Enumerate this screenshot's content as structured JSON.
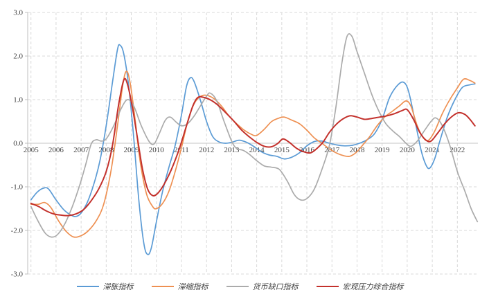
{
  "chart_data": {
    "type": "line",
    "title": "",
    "xlabel": "",
    "ylabel": "",
    "xlim": [
      2004.87,
      2022.82
    ],
    "ylim": [
      -3.0,
      3.0
    ],
    "grid": "dashed",
    "legend_position": "bottom",
    "colors": {
      "grid": "#d9d9d9",
      "axis": "#bfbfbf",
      "zero_line": "#c6c6c6",
      "tick_label": "#404040"
    },
    "y_ticks": [
      3.0,
      2.0,
      1.0,
      0.0,
      -1.0,
      -2.0,
      -3.0
    ],
    "y_tick_labels": [
      "3.0",
      "2.0",
      "1.0",
      "0.0",
      "-1.0",
      "-2.0",
      "-3.0"
    ],
    "x_ticks": [
      2005,
      2006,
      2007,
      2008,
      2009,
      2010,
      2011,
      2012,
      2013,
      2014,
      2015,
      2016,
      2017,
      2018,
      2019,
      2020,
      2021,
      2022
    ],
    "x_tick_labels": [
      "2005",
      "2006",
      "2007",
      "2008",
      "2009",
      "2010",
      "2011",
      "2012",
      "2013",
      "2014",
      "2015",
      "2016",
      "2017",
      "2018",
      "2019",
      "2020",
      "2021",
      "2022"
    ],
    "series": [
      {
        "name": "滞胀指标",
        "color": "#5b9bd5",
        "width": 1.7,
        "points": [
          [
            2005.0,
            -1.3
          ],
          [
            2005.25,
            -1.12
          ],
          [
            2005.5,
            -1.03
          ],
          [
            2005.7,
            -1.05
          ],
          [
            2006.0,
            -1.3
          ],
          [
            2006.3,
            -1.52
          ],
          [
            2006.6,
            -1.65
          ],
          [
            2006.8,
            -1.68
          ],
          [
            2007.0,
            -1.6
          ],
          [
            2007.25,
            -1.35
          ],
          [
            2007.5,
            -0.95
          ],
          [
            2007.75,
            -0.4
          ],
          [
            2008.0,
            0.4
          ],
          [
            2008.25,
            1.4
          ],
          [
            2008.45,
            2.15
          ],
          [
            2008.55,
            2.25
          ],
          [
            2008.7,
            2.05
          ],
          [
            2008.9,
            1.3
          ],
          [
            2009.1,
            0.1
          ],
          [
            2009.3,
            -1.3
          ],
          [
            2009.5,
            -2.3
          ],
          [
            2009.65,
            -2.55
          ],
          [
            2009.8,
            -2.4
          ],
          [
            2010.0,
            -1.8
          ],
          [
            2010.25,
            -1.1
          ],
          [
            2010.5,
            -0.55
          ],
          [
            2010.75,
            -0.05
          ],
          [
            2011.0,
            0.65
          ],
          [
            2011.2,
            1.3
          ],
          [
            2011.35,
            1.5
          ],
          [
            2011.5,
            1.42
          ],
          [
            2011.75,
            1.0
          ],
          [
            2012.0,
            0.5
          ],
          [
            2012.25,
            0.15
          ],
          [
            2012.5,
            0.03
          ],
          [
            2012.75,
            0.0
          ],
          [
            2013.0,
            0.02
          ],
          [
            2013.3,
            0.07
          ],
          [
            2013.6,
            0.02
          ],
          [
            2013.9,
            -0.08
          ],
          [
            2014.2,
            -0.2
          ],
          [
            2014.5,
            -0.27
          ],
          [
            2014.8,
            -0.3
          ],
          [
            2015.1,
            -0.36
          ],
          [
            2015.4,
            -0.32
          ],
          [
            2015.7,
            -0.22
          ],
          [
            2016.0,
            -0.06
          ],
          [
            2016.3,
            0.04
          ],
          [
            2016.6,
            0.05
          ],
          [
            2016.9,
            0.0
          ],
          [
            2017.2,
            -0.04
          ],
          [
            2017.5,
            -0.06
          ],
          [
            2017.8,
            -0.05
          ],
          [
            2018.1,
            0.0
          ],
          [
            2018.4,
            0.08
          ],
          [
            2018.7,
            0.22
          ],
          [
            2019.0,
            0.55
          ],
          [
            2019.3,
            1.05
          ],
          [
            2019.6,
            1.32
          ],
          [
            2019.85,
            1.4
          ],
          [
            2020.05,
            1.2
          ],
          [
            2020.3,
            0.55
          ],
          [
            2020.55,
            -0.15
          ],
          [
            2020.75,
            -0.5
          ],
          [
            2020.9,
            -0.57
          ],
          [
            2021.1,
            -0.35
          ],
          [
            2021.3,
            0.05
          ],
          [
            2021.6,
            0.6
          ],
          [
            2021.9,
            1.0
          ],
          [
            2022.2,
            1.28
          ],
          [
            2022.5,
            1.34
          ],
          [
            2022.7,
            1.36
          ]
        ]
      },
      {
        "name": "滞缩指标",
        "color": "#ee9052",
        "width": 1.7,
        "points": [
          [
            2005.0,
            -1.4
          ],
          [
            2005.3,
            -1.4
          ],
          [
            2005.55,
            -1.36
          ],
          [
            2005.8,
            -1.48
          ],
          [
            2006.1,
            -1.78
          ],
          [
            2006.4,
            -2.02
          ],
          [
            2006.7,
            -2.15
          ],
          [
            2007.0,
            -2.12
          ],
          [
            2007.3,
            -2.0
          ],
          [
            2007.6,
            -1.78
          ],
          [
            2007.9,
            -1.4
          ],
          [
            2008.2,
            -0.6
          ],
          [
            2008.45,
            0.4
          ],
          [
            2008.65,
            1.3
          ],
          [
            2008.8,
            1.65
          ],
          [
            2008.95,
            1.4
          ],
          [
            2009.15,
            0.55
          ],
          [
            2009.35,
            -0.4
          ],
          [
            2009.6,
            -1.15
          ],
          [
            2009.85,
            -1.45
          ],
          [
            2010.0,
            -1.5
          ],
          [
            2010.25,
            -1.38
          ],
          [
            2010.5,
            -1.1
          ],
          [
            2010.75,
            -0.65
          ],
          [
            2011.0,
            -0.1
          ],
          [
            2011.25,
            0.5
          ],
          [
            2011.5,
            0.9
          ],
          [
            2011.75,
            1.07
          ],
          [
            2012.0,
            1.1
          ],
          [
            2012.3,
            1.02
          ],
          [
            2012.6,
            0.85
          ],
          [
            2012.9,
            0.62
          ],
          [
            2013.2,
            0.45
          ],
          [
            2013.5,
            0.3
          ],
          [
            2013.8,
            0.2
          ],
          [
            2014.0,
            0.18
          ],
          [
            2014.3,
            0.32
          ],
          [
            2014.6,
            0.5
          ],
          [
            2014.9,
            0.58
          ],
          [
            2015.1,
            0.6
          ],
          [
            2015.4,
            0.53
          ],
          [
            2015.7,
            0.45
          ],
          [
            2016.0,
            0.3
          ],
          [
            2016.3,
            0.12
          ],
          [
            2016.6,
            0.0
          ],
          [
            2016.9,
            -0.13
          ],
          [
            2017.2,
            -0.23
          ],
          [
            2017.5,
            -0.29
          ],
          [
            2017.7,
            -0.3
          ],
          [
            2017.95,
            -0.22
          ],
          [
            2018.2,
            -0.06
          ],
          [
            2018.5,
            0.15
          ],
          [
            2018.8,
            0.4
          ],
          [
            2019.1,
            0.6
          ],
          [
            2019.4,
            0.73
          ],
          [
            2019.7,
            0.86
          ],
          [
            2019.95,
            0.97
          ],
          [
            2020.15,
            0.85
          ],
          [
            2020.4,
            0.4
          ],
          [
            2020.65,
            0.12
          ],
          [
            2020.85,
            0.07
          ],
          [
            2021.1,
            0.28
          ],
          [
            2021.4,
            0.68
          ],
          [
            2021.7,
            1.0
          ],
          [
            2022.0,
            1.27
          ],
          [
            2022.25,
            1.47
          ],
          [
            2022.5,
            1.44
          ],
          [
            2022.7,
            1.38
          ]
        ]
      },
      {
        "name": "货币缺口指标",
        "color": "#ababab",
        "width": 1.7,
        "points": [
          [
            2005.0,
            -1.45
          ],
          [
            2005.25,
            -1.75
          ],
          [
            2005.55,
            -2.05
          ],
          [
            2005.8,
            -2.15
          ],
          [
            2006.05,
            -2.1
          ],
          [
            2006.35,
            -1.85
          ],
          [
            2006.65,
            -1.45
          ],
          [
            2006.95,
            -0.95
          ],
          [
            2007.2,
            -0.45
          ],
          [
            2007.4,
            -0.02
          ],
          [
            2007.6,
            0.08
          ],
          [
            2007.8,
            0.05
          ],
          [
            2008.0,
            0.1
          ],
          [
            2008.3,
            0.4
          ],
          [
            2008.6,
            0.8
          ],
          [
            2008.85,
            1.0
          ],
          [
            2009.1,
            0.85
          ],
          [
            2009.4,
            0.4
          ],
          [
            2009.7,
            0.05
          ],
          [
            2009.9,
            -0.02
          ],
          [
            2010.1,
            0.2
          ],
          [
            2010.35,
            0.52
          ],
          [
            2010.55,
            0.6
          ],
          [
            2010.8,
            0.48
          ],
          [
            2011.0,
            0.4
          ],
          [
            2011.25,
            0.45
          ],
          [
            2011.5,
            0.62
          ],
          [
            2011.75,
            0.85
          ],
          [
            2012.0,
            1.08
          ],
          [
            2012.15,
            1.15
          ],
          [
            2012.4,
            0.98
          ],
          [
            2012.7,
            0.5
          ],
          [
            2013.0,
            0.05
          ],
          [
            2013.2,
            -0.12
          ],
          [
            2013.45,
            -0.16
          ],
          [
            2013.7,
            -0.25
          ],
          [
            2014.0,
            -0.4
          ],
          [
            2014.3,
            -0.52
          ],
          [
            2014.6,
            -0.55
          ],
          [
            2014.9,
            -0.6
          ],
          [
            2015.2,
            -0.85
          ],
          [
            2015.5,
            -1.18
          ],
          [
            2015.75,
            -1.3
          ],
          [
            2016.0,
            -1.27
          ],
          [
            2016.3,
            -1.05
          ],
          [
            2016.6,
            -0.6
          ],
          [
            2016.9,
            -0.05
          ],
          [
            2017.15,
            0.8
          ],
          [
            2017.4,
            1.85
          ],
          [
            2017.6,
            2.45
          ],
          [
            2017.8,
            2.45
          ],
          [
            2018.0,
            2.1
          ],
          [
            2018.3,
            1.6
          ],
          [
            2018.6,
            1.1
          ],
          [
            2018.9,
            0.7
          ],
          [
            2019.15,
            0.45
          ],
          [
            2019.45,
            0.27
          ],
          [
            2019.7,
            0.15
          ],
          [
            2019.95,
            0.0
          ],
          [
            2020.15,
            -0.07
          ],
          [
            2020.4,
            0.05
          ],
          [
            2020.7,
            0.3
          ],
          [
            2020.95,
            0.5
          ],
          [
            2021.15,
            0.58
          ],
          [
            2021.4,
            0.4
          ],
          [
            2021.7,
            -0.05
          ],
          [
            2022.0,
            -0.65
          ],
          [
            2022.3,
            -1.1
          ],
          [
            2022.55,
            -1.5
          ],
          [
            2022.8,
            -1.8
          ]
        ]
      },
      {
        "name": "宏观压力综合指标",
        "color": "#c3312c",
        "width": 2.0,
        "points": [
          [
            2005.0,
            -1.38
          ],
          [
            2005.3,
            -1.45
          ],
          [
            2005.6,
            -1.55
          ],
          [
            2005.9,
            -1.62
          ],
          [
            2006.2,
            -1.65
          ],
          [
            2006.5,
            -1.66
          ],
          [
            2006.8,
            -1.62
          ],
          [
            2007.1,
            -1.52
          ],
          [
            2007.4,
            -1.32
          ],
          [
            2007.7,
            -1.05
          ],
          [
            2008.0,
            -0.65
          ],
          [
            2008.25,
            -0.05
          ],
          [
            2008.5,
            0.9
          ],
          [
            2008.7,
            1.45
          ],
          [
            2008.85,
            1.35
          ],
          [
            2009.05,
            0.8
          ],
          [
            2009.25,
            0.1
          ],
          [
            2009.45,
            -0.6
          ],
          [
            2009.65,
            -1.05
          ],
          [
            2009.85,
            -1.2
          ],
          [
            2010.05,
            -1.15
          ],
          [
            2010.3,
            -0.95
          ],
          [
            2010.6,
            -0.6
          ],
          [
            2010.9,
            -0.15
          ],
          [
            2011.2,
            0.4
          ],
          [
            2011.45,
            0.85
          ],
          [
            2011.65,
            1.05
          ],
          [
            2011.9,
            1.05
          ],
          [
            2012.2,
            0.98
          ],
          [
            2012.5,
            0.85
          ],
          [
            2012.8,
            0.68
          ],
          [
            2013.1,
            0.5
          ],
          [
            2013.4,
            0.3
          ],
          [
            2013.7,
            0.15
          ],
          [
            2014.0,
            0.02
          ],
          [
            2014.3,
            -0.07
          ],
          [
            2014.6,
            -0.08
          ],
          [
            2014.85,
            0.0
          ],
          [
            2015.05,
            0.1
          ],
          [
            2015.3,
            0.02
          ],
          [
            2015.6,
            -0.12
          ],
          [
            2015.9,
            -0.2
          ],
          [
            2016.15,
            -0.22
          ],
          [
            2016.4,
            -0.12
          ],
          [
            2016.65,
            0.03
          ],
          [
            2016.9,
            0.25
          ],
          [
            2017.2,
            0.45
          ],
          [
            2017.5,
            0.58
          ],
          [
            2017.75,
            0.63
          ],
          [
            2018.0,
            0.6
          ],
          [
            2018.3,
            0.55
          ],
          [
            2018.6,
            0.57
          ],
          [
            2018.9,
            0.6
          ],
          [
            2019.2,
            0.63
          ],
          [
            2019.5,
            0.68
          ],
          [
            2019.8,
            0.75
          ],
          [
            2020.0,
            0.77
          ],
          [
            2020.25,
            0.55
          ],
          [
            2020.5,
            0.25
          ],
          [
            2020.75,
            0.07
          ],
          [
            2020.95,
            0.05
          ],
          [
            2021.2,
            0.22
          ],
          [
            2021.5,
            0.45
          ],
          [
            2021.8,
            0.62
          ],
          [
            2022.05,
            0.7
          ],
          [
            2022.3,
            0.66
          ],
          [
            2022.5,
            0.55
          ],
          [
            2022.7,
            0.4
          ]
        ]
      }
    ]
  }
}
